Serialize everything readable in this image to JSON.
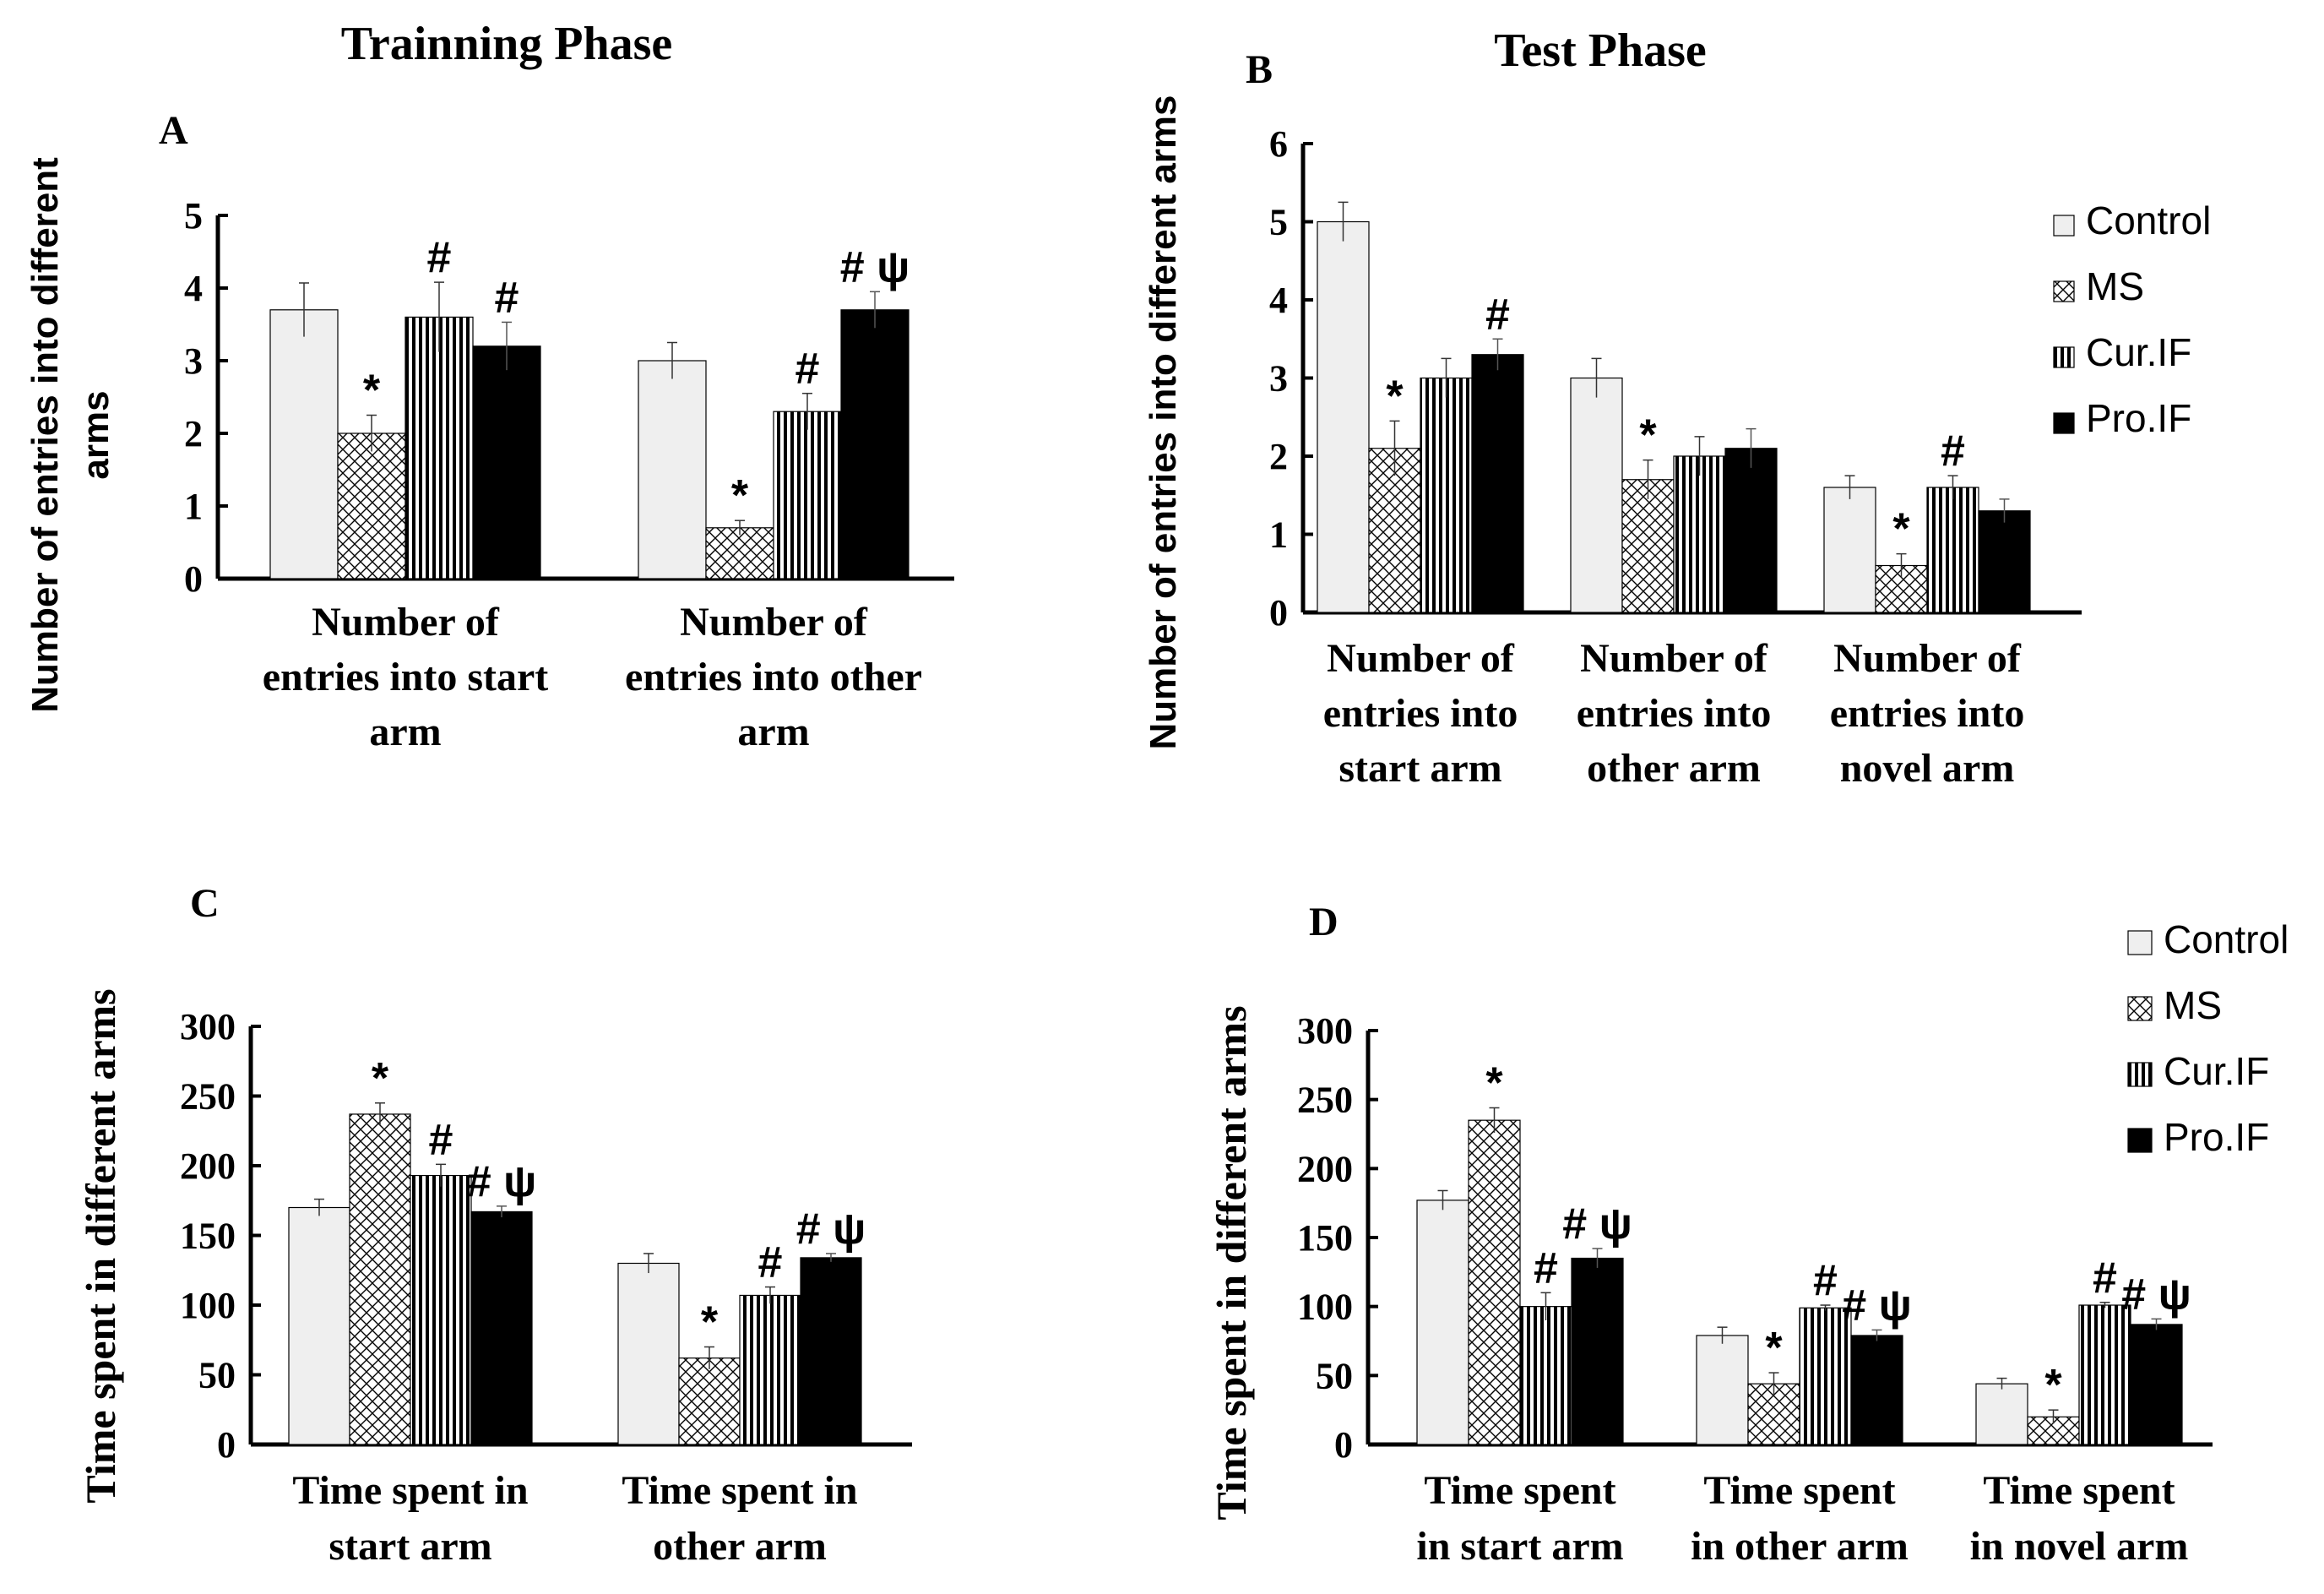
{
  "figure": {
    "title_training": "Trainning Phase",
    "title_test": "Test Phase"
  },
  "colors": {
    "Control": "#efefef",
    "MS": "#ffffff",
    "Cur.IF": "#ffffff",
    "Pro.IF": "#000000",
    "axis": "#000000"
  },
  "patterns": {
    "Control": "solid-light-gray",
    "MS": "crosshatch",
    "Cur.IF": "vertical-stripes",
    "Pro.IF": "solid-black"
  },
  "chart_data": [
    {
      "id": "A",
      "panel_label": "A",
      "type": "bar",
      "title": "",
      "ylabel": "Number of entries into different arms",
      "ylim": [
        0,
        5
      ],
      "yticks": [
        0,
        1,
        2,
        3,
        4,
        5
      ],
      "categories": [
        "Number of entries into start arm",
        "Number of entries into other arm"
      ],
      "category_label_lines": [
        [
          "Number of",
          "entries into start",
          "arm"
        ],
        [
          "Number of",
          "entries into other",
          "arm"
        ]
      ],
      "series": [
        {
          "name": "Control",
          "values": [
            3.7,
            3.0
          ],
          "errors": [
            0.37,
            0.25
          ],
          "annotations": [
            "",
            ""
          ]
        },
        {
          "name": "MS",
          "values": [
            2.0,
            0.7
          ],
          "errors": [
            0.25,
            0.1
          ],
          "annotations": [
            "*",
            "*"
          ]
        },
        {
          "name": "Cur.IF",
          "values": [
            3.6,
            2.3
          ],
          "errors": [
            0.48,
            0.25
          ],
          "annotations": [
            "#",
            "#"
          ]
        },
        {
          "name": "Pro.IF",
          "values": [
            3.2,
            3.7
          ],
          "errors": [
            0.33,
            0.25
          ],
          "annotations": [
            "#",
            "# ψ"
          ]
        }
      ],
      "legend": null
    },
    {
      "id": "B",
      "panel_label": "B",
      "type": "bar",
      "title": "",
      "ylabel": "Number of entries into different arms",
      "ylim": [
        0,
        6
      ],
      "yticks": [
        0,
        1,
        2,
        3,
        4,
        5,
        6
      ],
      "categories": [
        "Number of entries into start arm",
        "Number of entries into other arm",
        "Number of entries into novel arm"
      ],
      "category_label_lines": [
        [
          "Number of",
          "entries into",
          "start arm"
        ],
        [
          "Number of",
          "entries into",
          "other arm"
        ],
        [
          "Number of",
          "entries into",
          "novel arm"
        ]
      ],
      "series": [
        {
          "name": "Control",
          "values": [
            5.0,
            3.0,
            1.6
          ],
          "errors": [
            0.25,
            0.25,
            0.15
          ],
          "annotations": [
            "",
            "",
            ""
          ]
        },
        {
          "name": "MS",
          "values": [
            2.1,
            1.7,
            0.6
          ],
          "errors": [
            0.35,
            0.25,
            0.15
          ],
          "annotations": [
            "*",
            "*",
            "*"
          ]
        },
        {
          "name": "Cur.IF",
          "values": [
            3.0,
            2.0,
            1.6
          ],
          "errors": [
            0.25,
            0.25,
            0.15
          ],
          "annotations": [
            "",
            "",
            "#"
          ]
        },
        {
          "name": "Pro.IF",
          "values": [
            3.3,
            2.1,
            1.3
          ],
          "errors": [
            0.2,
            0.25,
            0.15
          ],
          "annotations": [
            "#",
            "",
            ""
          ]
        }
      ],
      "legend": {
        "entries": [
          "Control",
          "MS",
          "Cur.IF",
          "Pro.IF"
        ],
        "position": "right"
      }
    },
    {
      "id": "C",
      "panel_label": "C",
      "type": "bar",
      "title": "",
      "ylabel": "Time spent in different arms",
      "ylim": [
        0,
        300
      ],
      "yticks": [
        0,
        50,
        100,
        150,
        200,
        250,
        300
      ],
      "categories": [
        "Time spent in start arm",
        "Time spent in other arm"
      ],
      "category_label_lines": [
        [
          "Time spent in",
          "start arm"
        ],
        [
          "Time spent in",
          "other arm"
        ]
      ],
      "series": [
        {
          "name": "Control",
          "values": [
            170,
            130
          ],
          "errors": [
            6,
            7
          ],
          "annotations": [
            "",
            ""
          ]
        },
        {
          "name": "MS",
          "values": [
            237,
            62
          ],
          "errors": [
            8,
            8
          ],
          "annotations": [
            "*",
            "*"
          ]
        },
        {
          "name": "Cur.IF",
          "values": [
            193,
            107
          ],
          "errors": [
            8,
            6
          ],
          "annotations": [
            "#",
            "#"
          ]
        },
        {
          "name": "Pro.IF",
          "values": [
            167,
            134
          ],
          "errors": [
            4,
            3
          ],
          "annotations": [
            "# ψ",
            "# ψ"
          ]
        }
      ],
      "legend": null
    },
    {
      "id": "D",
      "panel_label": "D",
      "type": "bar",
      "title": "",
      "ylabel": "Time spent in different arms",
      "ylim": [
        0,
        300
      ],
      "yticks": [
        0,
        50,
        100,
        150,
        200,
        250,
        300
      ],
      "categories": [
        "Time spent in start arm",
        "Time spent in other arm",
        "Time spent in novel arm"
      ],
      "category_label_lines": [
        [
          "Time spent",
          "in  start arm"
        ],
        [
          "Time spent",
          "in other arm"
        ],
        [
          "Time spent",
          "in novel arm"
        ]
      ],
      "series": [
        {
          "name": "Control",
          "values": [
            177,
            79,
            44
          ],
          "errors": [
            7,
            6,
            4
          ],
          "annotations": [
            "",
            "",
            ""
          ]
        },
        {
          "name": "MS",
          "values": [
            235,
            44,
            20
          ],
          "errors": [
            9,
            8,
            5
          ],
          "annotations": [
            "*",
            "*",
            "*"
          ]
        },
        {
          "name": "Cur.IF",
          "values": [
            100,
            99,
            101
          ],
          "errors": [
            10,
            2,
            2
          ],
          "annotations": [
            "#",
            "#",
            "#"
          ]
        },
        {
          "name": "Pro.IF",
          "values": [
            135,
            79,
            87
          ],
          "errors": [
            7,
            4,
            4
          ],
          "annotations": [
            "# ψ",
            "# ψ",
            "# ψ"
          ]
        }
      ],
      "legend": {
        "entries": [
          "Control",
          "MS",
          "Cur.IF",
          "Pro.IF"
        ],
        "position": "top-right"
      }
    }
  ]
}
